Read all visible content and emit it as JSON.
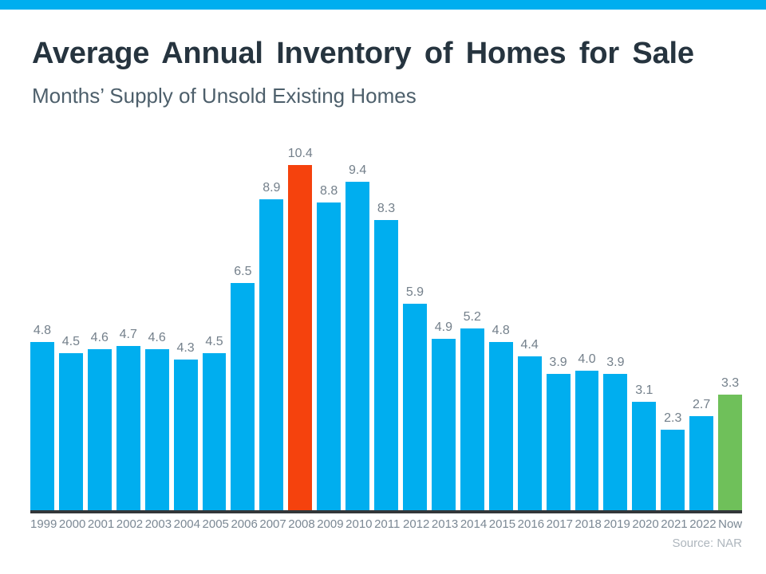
{
  "page": {
    "top_strip_color": "#00AEEF"
  },
  "header": {
    "title": "Average Annual Inventory of Homes for Sale",
    "subtitle": "Months’ Supply of Unsold Existing Homes"
  },
  "chart_data": {
    "type": "bar",
    "title": "Average Annual Inventory of Homes for Sale",
    "subtitle": "Months’ Supply of Unsold Existing Homes",
    "categories": [
      "1999",
      "2000",
      "2001",
      "2002",
      "2003",
      "2004",
      "2005",
      "2006",
      "2007",
      "2008",
      "2009",
      "2010",
      "2011",
      "2012",
      "2013",
      "2014",
      "2015",
      "2016",
      "2017",
      "2018",
      "2019",
      "2020",
      "2021",
      "2022",
      "Now"
    ],
    "values": [
      4.8,
      4.5,
      4.6,
      4.7,
      4.6,
      4.3,
      4.5,
      6.5,
      8.9,
      10.4,
      8.8,
      9.4,
      8.3,
      5.9,
      4.9,
      5.2,
      4.8,
      4.4,
      3.9,
      4.0,
      3.9,
      3.1,
      2.3,
      2.7,
      3.3
    ],
    "value_labels": [
      "4.8",
      "4.5",
      "4.6",
      "4.7",
      "4.6",
      "4.3",
      "4.5",
      "6.5",
      "8.9",
      "10.4",
      "8.8",
      "9.4",
      "8.3",
      "5.9",
      "4.9",
      "5.2",
      "4.8",
      "4.4",
      "3.9",
      "4.0",
      "3.9",
      "3.1",
      "2.3",
      "2.7",
      "3.3"
    ],
    "ylim": [
      0,
      10.4
    ],
    "grid": false,
    "legend": false,
    "colors": {
      "default": "#00AEEF",
      "2008": "#F5420D",
      "Now": "#6FC05A"
    },
    "axis_line_color": "#33373A",
    "label_color": "#74808B",
    "tick_color": "#7B8894"
  },
  "footer": {
    "source": "Source: NAR"
  }
}
